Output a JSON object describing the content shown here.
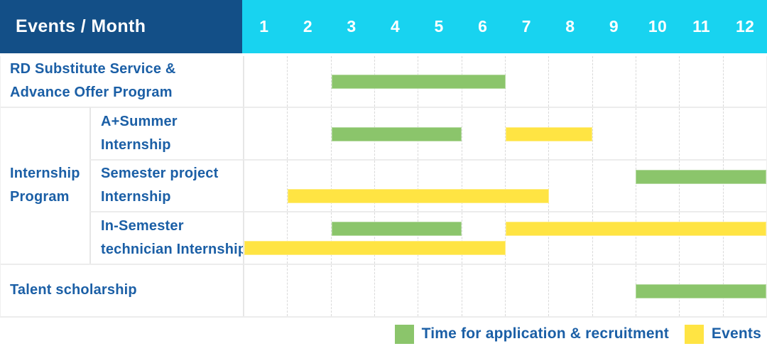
{
  "colors": {
    "header_bg": "#134F87",
    "months_bg": "#18D3F0",
    "green": "#8BC56B",
    "yellow": "#FFE443",
    "label_text": "#1B5FA6"
  },
  "group_label_lines": {
    "Internship Program": [
      "Internship",
      "Program"
    ]
  },
  "chart_data": {
    "type": "bar",
    "subtype": "gantt",
    "row_header": "Events / Month",
    "x_axis_label": "Month",
    "x_ticks": [
      "1",
      "2",
      "3",
      "4",
      "5",
      "6",
      "7",
      "8",
      "9",
      "10",
      "11",
      "12"
    ],
    "x_range": [
      1,
      12
    ],
    "grid": "dashed-vertical-month-lines",
    "legend_position": "bottom-right",
    "series": [
      {
        "name": "Time for application & recruitment",
        "color_key": "green"
      },
      {
        "name": "Events",
        "color_key": "yellow"
      }
    ],
    "events": [
      {
        "name": "RD Substitute Service & Advance Offer Program",
        "name_lines": [
          "RD Substitute Service &",
          "Advance Offer Program"
        ],
        "group": null,
        "spans": [
          {
            "series": "Time for application & recruitment",
            "color_key": "green",
            "start_month": 3,
            "end_month": 6,
            "lane": "middle"
          }
        ]
      },
      {
        "name": "A+Summer Internship",
        "name_lines": [
          "A+Summer",
          "Internship"
        ],
        "group": "Internship Program",
        "spans": [
          {
            "series": "Time for application & recruitment",
            "color_key": "green",
            "start_month": 3,
            "end_month": 5,
            "lane": "middle"
          },
          {
            "series": "Events",
            "color_key": "yellow",
            "start_month": 7,
            "end_month": 8,
            "lane": "middle"
          }
        ]
      },
      {
        "name": "Semester project Internship",
        "name_lines": [
          "Semester project",
          "Internship"
        ],
        "group": "Internship Program",
        "spans": [
          {
            "series": "Time for application & recruitment",
            "color_key": "green",
            "start_month": 10,
            "end_month": 12,
            "lane": "top"
          },
          {
            "series": "Events",
            "color_key": "yellow",
            "start_month": 2,
            "end_month": 7,
            "lane": "bottom"
          }
        ]
      },
      {
        "name": "In-Semester technician Internship",
        "name_lines": [
          "In-Semester",
          "technician Internship"
        ],
        "group": "Internship Program",
        "spans": [
          {
            "series": "Time for application & recruitment",
            "color_key": "green",
            "start_month": 3,
            "end_month": 5,
            "lane": "top"
          },
          {
            "series": "Events",
            "color_key": "yellow",
            "start_month": 7,
            "end_month": 12,
            "lane": "top"
          },
          {
            "series": "Events",
            "color_key": "yellow",
            "start_month": 1,
            "end_month": 6,
            "lane": "bottom"
          }
        ]
      },
      {
        "name": "Talent scholarship",
        "name_lines": [
          "Talent scholarship"
        ],
        "group": null,
        "spans": [
          {
            "series": "Time for application & recruitment",
            "color_key": "green",
            "start_month": 10,
            "end_month": 12,
            "lane": "middle"
          }
        ]
      }
    ]
  }
}
